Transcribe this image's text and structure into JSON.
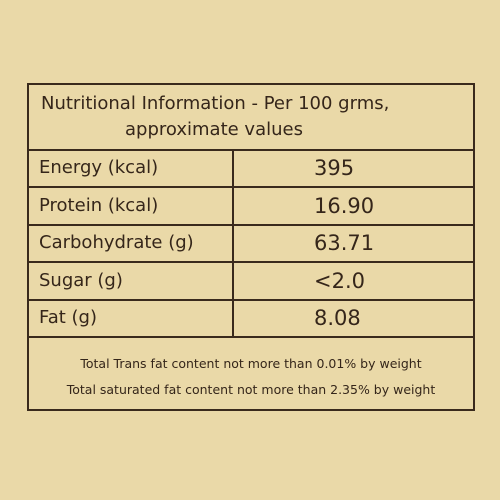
{
  "header": {
    "title": "Nutritional Information -  Per 100 grms,",
    "subtitle": "approximate values"
  },
  "table": {
    "rows": [
      [
        "Energy (kcal)",
        "395"
      ],
      [
        "Protein (kcal)",
        "16.90"
      ],
      [
        "Carbohydrate (g)",
        "63.71"
      ],
      [
        "Sugar (g)",
        "<2.0"
      ],
      [
        "Fat (g)",
        "8.08"
      ]
    ]
  },
  "notes": [
    "Total Trans fat content not more than 0.01% by weight",
    "Total saturated fat content not more than 2.35% by weight"
  ]
}
